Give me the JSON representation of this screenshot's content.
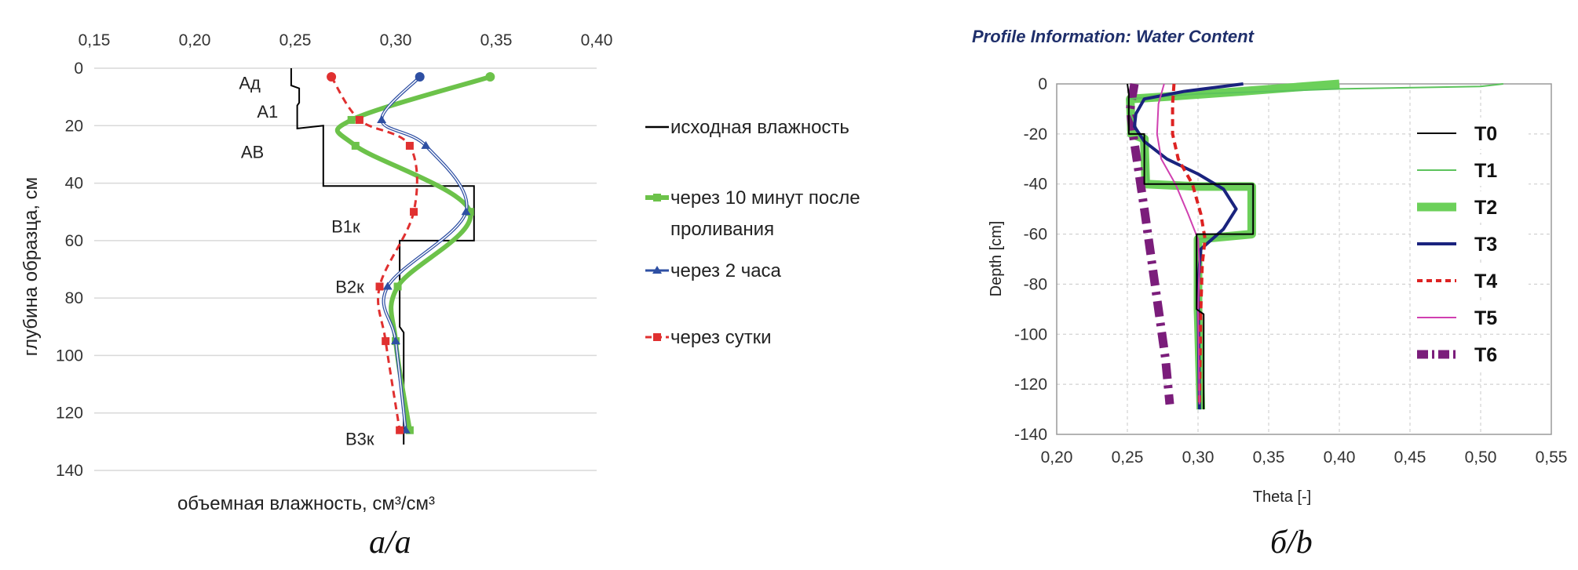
{
  "chart_data": [
    {
      "type": "line",
      "panel": "a",
      "caption": "а/a",
      "xlabel": "объемная влажность, см³/см³",
      "ylabel": "глубина образца, см",
      "xlim": [
        0.15,
        0.4
      ],
      "ylim": [
        0,
        140
      ],
      "x_axis_position": "top",
      "y_inverted": true,
      "x_ticks": [
        "0,15",
        "0,20",
        "0,25",
        "0,30",
        "0,35",
        "0,40"
      ],
      "y_ticks": [
        "0",
        "20",
        "40",
        "60",
        "80",
        "100",
        "120",
        "140"
      ],
      "grid": "horizontal",
      "legend_position": "right",
      "horizon_labels": [
        {
          "text": "Ад",
          "x": 0.222,
          "y": 5
        },
        {
          "text": "А1",
          "x": 0.231,
          "y": 15
        },
        {
          "text": "АВ",
          "x": 0.223,
          "y": 29
        },
        {
          "text": "В1к",
          "x": 0.268,
          "y": 55
        },
        {
          "text": "В2к",
          "x": 0.27,
          "y": 76
        },
        {
          "text": "В3к",
          "x": 0.275,
          "y": 129
        }
      ],
      "series": [
        {
          "name": "исходная влажность",
          "color": "#000000",
          "style": "step",
          "x": [
            0.248,
            0.248,
            0.252,
            0.252,
            0.251,
            0.251,
            0.264,
            0.264,
            0.339,
            0.339,
            0.302,
            0.302,
            0.304,
            0.304
          ],
          "y": [
            0,
            6,
            7,
            12,
            13,
            21,
            20,
            41,
            41,
            60,
            60,
            90,
            92,
            131
          ]
        },
        {
          "name": "через 10 минут после проливания",
          "color": "#6cc24a",
          "marker": "square",
          "style": "smooth",
          "x": [
            0.347,
            0.278,
            0.28,
            0.337,
            0.301,
            0.3,
            0.307
          ],
          "y": [
            3,
            18,
            27,
            50,
            76,
            95,
            126
          ]
        },
        {
          "name": "через 2 часа",
          "color": "#2e4fa3",
          "marker": "triangle",
          "style": "smooth",
          "x": [
            0.312,
            0.293,
            0.315,
            0.335,
            0.296,
            0.3,
            0.305
          ],
          "y": [
            3,
            18,
            27,
            50,
            76,
            95,
            126
          ]
        },
        {
          "name": "через сутки",
          "color": "#e03030",
          "marker": "square",
          "style": "dashed",
          "x": [
            0.268,
            0.282,
            0.307,
            0.309,
            0.292,
            0.295,
            0.302
          ],
          "y": [
            3,
            18,
            27,
            50,
            76,
            95,
            126
          ]
        }
      ]
    },
    {
      "type": "line",
      "panel": "b",
      "caption": "б/b",
      "title": "Profile Information:  Water Content",
      "xlabel": "Theta [-]",
      "ylabel": "Depth [cm]",
      "xlim": [
        0.2,
        0.55
      ],
      "ylim": [
        -140,
        0
      ],
      "x_ticks": [
        "0,20",
        "0,25",
        "0,30",
        "0,35",
        "0,40",
        "0,45",
        "0,50",
        "0,55"
      ],
      "y_ticks": [
        "0",
        "-20",
        "-40",
        "-60",
        "-80",
        "-100",
        "-120",
        "-140"
      ],
      "grid": "both, dashed",
      "legend_position": "right",
      "series": [
        {
          "name": "T0",
          "color": "#000000",
          "width": "thin",
          "x": [
            0.25,
            0.251,
            0.251,
            0.262,
            0.262,
            0.299,
            0.339,
            0.339,
            0.299,
            0.299,
            0.299,
            0.304,
            0.304
          ],
          "y": [
            0,
            -4,
            -20,
            -20,
            -40,
            -40,
            -40,
            -60,
            -60,
            -89,
            -90,
            -92,
            -130
          ]
        },
        {
          "name": "T1",
          "color": "#5cc35c",
          "width": "thin",
          "x": [
            0.516,
            0.5,
            0.4,
            0.3,
            0.25,
            0.251,
            0.258,
            0.262,
            0.265,
            0.3,
            0.338,
            0.338,
            0.3,
            0.3,
            0.302
          ],
          "y": [
            0,
            -1,
            -2,
            -4,
            -6,
            -10,
            -20,
            -22,
            -40,
            -40,
            -40,
            -60,
            -62,
            -90,
            -130
          ]
        },
        {
          "name": "T2",
          "color": "#6cd05a",
          "width": "thick",
          "x": [
            0.4,
            0.33,
            0.28,
            0.252,
            0.253,
            0.262,
            0.263,
            0.3,
            0.338,
            0.338,
            0.3,
            0.3,
            0.302
          ],
          "y": [
            0,
            -3,
            -5,
            -6,
            -20,
            -22,
            -40,
            -41,
            -41,
            -60,
            -62,
            -90,
            -130
          ]
        },
        {
          "name": "T3",
          "color": "#1a237e",
          "width": "medium",
          "x": [
            0.332,
            0.29,
            0.262,
            0.256,
            0.255,
            0.262,
            0.278,
            0.3,
            0.318,
            0.327,
            0.318,
            0.302,
            0.3,
            0.301
          ],
          "y": [
            0,
            -3,
            -6,
            -12,
            -17,
            -23,
            -30,
            -36,
            -42,
            -50,
            -58,
            -66,
            -80,
            -130
          ]
        },
        {
          "name": "T4",
          "color": "#dd2222",
          "width": "medium",
          "style": "dashed",
          "x": [
            0.283,
            0.282,
            0.282,
            0.286,
            0.296,
            0.302,
            0.305,
            0.303,
            0.302,
            0.301
          ],
          "y": [
            0,
            -8,
            -20,
            -30,
            -40,
            -52,
            -62,
            -72,
            -90,
            -128
          ]
        },
        {
          "name": "T5",
          "color": "#d040b0",
          "width": "thin",
          "x": [
            0.276,
            0.272,
            0.271,
            0.274,
            0.284,
            0.293,
            0.3,
            0.301,
            0.3,
            0.301
          ],
          "y": [
            0,
            -8,
            -20,
            -30,
            -40,
            -52,
            -62,
            -72,
            -90,
            -128
          ]
        },
        {
          "name": "T6",
          "color": "#7b1d7b",
          "width": "thick",
          "style": "dashdot",
          "x": [
            0.255,
            0.252,
            0.254,
            0.258,
            0.262,
            0.267,
            0.272,
            0.277,
            0.28
          ],
          "y": [
            0,
            -10,
            -20,
            -35,
            -50,
            -70,
            -90,
            -110,
            -128
          ]
        }
      ]
    }
  ]
}
